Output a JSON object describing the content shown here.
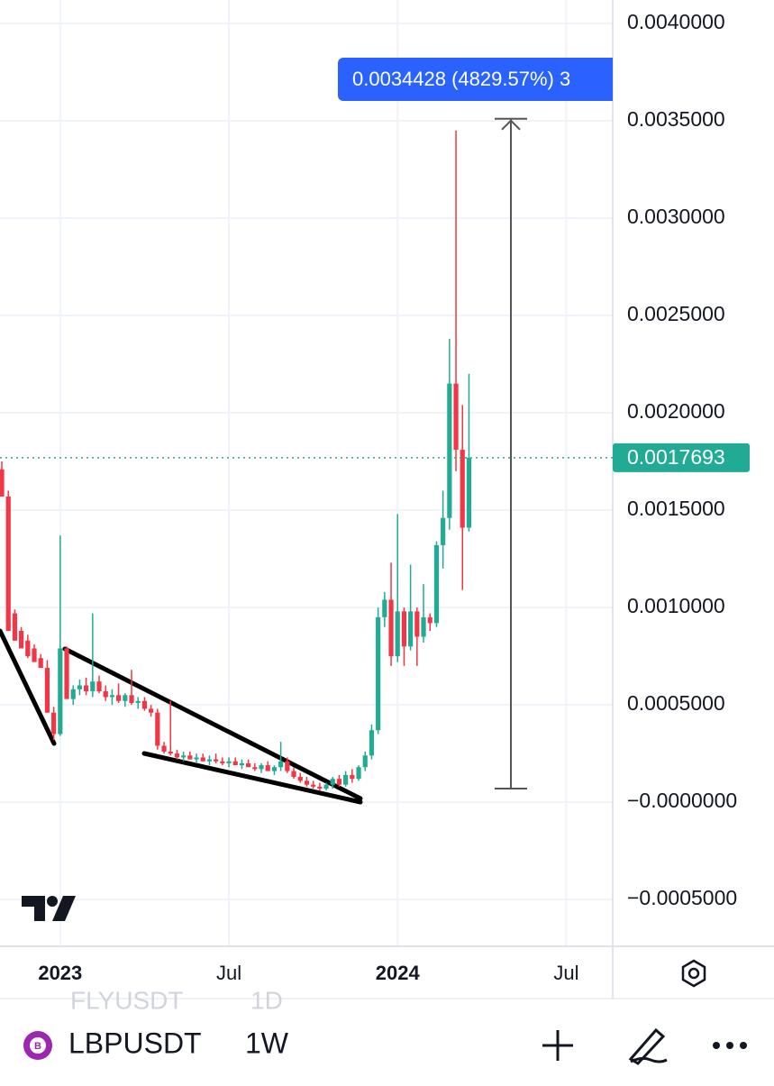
{
  "chart_data": {
    "type": "candlestick",
    "symbol": "LBPUSDT",
    "interval": "1W",
    "other_symbol": "FLYUSDT",
    "other_interval": "1D",
    "categories": [
      null,
      null,
      null,
      null,
      null,
      null,
      null,
      null,
      null,
      null,
      null,
      null,
      null,
      null,
      null,
      null,
      null,
      null,
      null,
      null,
      null,
      null,
      null,
      null,
      null,
      null,
      null,
      null,
      null,
      null,
      null,
      null,
      null,
      null,
      null,
      null,
      null,
      null,
      null,
      null,
      null,
      null,
      null,
      null,
      null,
      null,
      null,
      null,
      null,
      null,
      null,
      null,
      null,
      null,
      null,
      null,
      null,
      null,
      null,
      null,
      null,
      null,
      null,
      null,
      null,
      null,
      null,
      null,
      null,
      null,
      null,
      null,
      null
    ],
    "open": [
      0.00171,
      0.00157,
      0.00097,
      0.00088,
      0.00083,
      0.00079,
      0.00074,
      0.00069,
      0.00046,
      0.00035,
      0.00079,
      0.00053,
      0.00058,
      0.0006,
      0.00057,
      0.00062,
      0.00057,
      0.00054,
      0.00055,
      0.00052,
      0.00055,
      0.00051,
      0.00052,
      0.00048,
      0.00046,
      0.00029,
      0.00026,
      0.00025,
      0.00023,
      0.00024,
      0.00022,
      0.00023,
      0.00021,
      0.00022,
      0.00021,
      0.0002,
      0.00021,
      0.00019,
      0.0002,
      0.00018,
      0.00017,
      0.00019,
      0.00016,
      0.00018,
      0.00021,
      0.00016,
      0.00013,
      0.00011,
      9e-05,
      8e-05,
      7e-05,
      9e-05,
      0.00012,
      9e-05,
      0.00014,
      0.00012,
      0.00018,
      0.00024,
      0.00037,
      0.00095,
      0.00104,
      0.00075,
      0.00098,
      0.0008,
      0.00098,
      0.00085,
      0.00095,
      0.00092,
      0.00132,
      0.00146,
      0.00215,
      0.00181,
      0.00141
    ],
    "high": [
      0.00175,
      0.0016,
      0.00099,
      0.0009,
      0.00086,
      0.00081,
      0.00076,
      0.00073,
      0.00049,
      0.00137,
      0.0008,
      0.0006,
      0.00063,
      0.00064,
      0.00097,
      0.00065,
      0.0006,
      0.00058,
      0.00061,
      0.00056,
      0.00068,
      0.00054,
      0.00054,
      0.0005,
      0.00048,
      0.00031,
      0.00052,
      0.00027,
      0.00026,
      0.00026,
      0.00025,
      0.00025,
      0.00024,
      0.00025,
      0.00023,
      0.00023,
      0.00023,
      0.00022,
      0.00022,
      0.0002,
      0.0002,
      0.00021,
      0.00019,
      0.00031,
      0.00023,
      0.00018,
      0.00015,
      0.00013,
      0.00011,
      0.0001,
      0.0001,
      0.00013,
      0.00014,
      0.00016,
      0.00017,
      0.00019,
      0.00026,
      0.0004,
      0.001,
      0.00108,
      0.00123,
      0.00148,
      0.001,
      0.00122,
      0.001,
      0.00112,
      0.00097,
      0.00134,
      0.0016,
      0.00238,
      0.00345,
      0.00204,
      0.0022
    ],
    "low": [
      0.00157,
      0.00088,
      0.00083,
      0.00079,
      0.00074,
      0.00072,
      0.00069,
      0.00046,
      0.00032,
      0.00034,
      0.00053,
      0.0005,
      0.00055,
      0.00055,
      0.00054,
      0.00056,
      0.00052,
      0.0005,
      0.00051,
      0.00049,
      0.0005,
      0.00048,
      0.00047,
      0.00044,
      0.00027,
      0.00025,
      0.00024,
      0.00022,
      0.00021,
      0.00022,
      0.0002,
      0.00021,
      0.00019,
      0.0002,
      0.00019,
      0.00018,
      0.00019,
      0.00017,
      0.00018,
      0.00016,
      0.00015,
      0.00016,
      0.00014,
      0.00016,
      0.00015,
      0.00012,
      0.0001,
      8e-05,
      7e-05,
      6e-05,
      6e-05,
      7e-05,
      8e-05,
      8e-05,
      0.0001,
      0.00011,
      0.00016,
      0.00022,
      0.00035,
      0.0009,
      0.0007,
      0.00072,
      0.0007,
      0.00078,
      0.0007,
      0.00082,
      0.00088,
      0.0009,
      0.0012,
      0.0014,
      0.0017,
      0.00109,
      0.00139
    ],
    "close": [
      0.00157,
      0.00088,
      0.00083,
      0.00079,
      0.00075,
      0.00072,
      0.00069,
      0.00046,
      0.00035,
      0.00079,
      0.00053,
      0.00058,
      0.0006,
      0.00057,
      0.00062,
      0.00057,
      0.00054,
      0.00055,
      0.00052,
      0.00055,
      0.00051,
      0.00052,
      0.00048,
      0.00046,
      0.00029,
      0.00026,
      0.00025,
      0.00023,
      0.00024,
      0.00022,
      0.00023,
      0.00021,
      0.00022,
      0.00021,
      0.0002,
      0.00021,
      0.00019,
      0.0002,
      0.00018,
      0.00017,
      0.00019,
      0.00016,
      0.00018,
      0.00021,
      0.00016,
      0.00013,
      0.00011,
      9e-05,
      8e-05,
      7e-05,
      9e-05,
      0.00012,
      9e-05,
      0.00014,
      0.00012,
      0.00018,
      0.00024,
      0.00037,
      0.00095,
      0.00104,
      0.00075,
      0.00098,
      0.0008,
      0.00098,
      0.00085,
      0.00095,
      0.00092,
      0.00132,
      0.00146,
      0.00215,
      0.00181,
      0.00141,
      0.0017693
    ],
    "up_color": "#22ab94",
    "down_color": "#f23645",
    "last_price": 0.0017693,
    "measure": {
      "label": "0.0034428 (4829.57%) 3",
      "from": 7e-05,
      "to": 0.00351
    },
    "ylim": [
      -0.00074,
      0.00412
    ],
    "yticks": [
      {
        "value": -0.0005,
        "label": "−0.0005000"
      },
      {
        "value": 0,
        "label": "−0.0000000"
      },
      {
        "value": 0.0005,
        "label": "0.0005000"
      },
      {
        "value": 0.001,
        "label": "0.0010000"
      },
      {
        "value": 0.0015,
        "label": "0.0015000"
      },
      {
        "value": 0.002,
        "label": "0.0020000"
      },
      {
        "value": 0.0025,
        "label": "0.0025000"
      },
      {
        "value": 0.003,
        "label": "0.0030000"
      },
      {
        "value": 0.0035,
        "label": "0.0035000"
      },
      {
        "value": 0.004,
        "label": "0.0040000"
      }
    ],
    "xlim": [
      -0.28,
      94.16
    ],
    "xticks": [
      {
        "value": 9,
        "label": "2023"
      },
      {
        "value": 35,
        "label": "Jul"
      },
      {
        "value": 61,
        "label": "2024"
      },
      {
        "value": 87,
        "label": "Jul"
      }
    ],
    "grid": true
  }
}
